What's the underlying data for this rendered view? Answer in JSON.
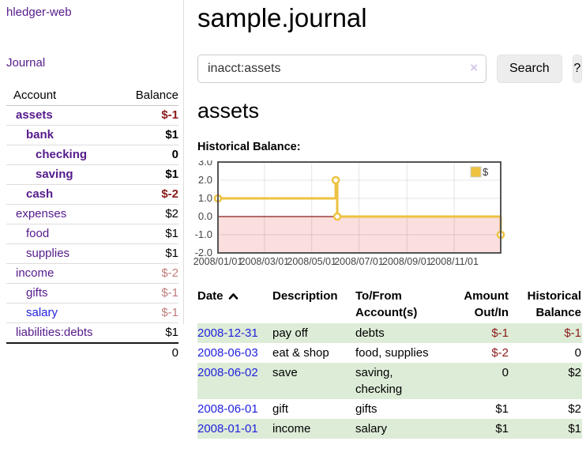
{
  "app": {
    "title": "hledger-web",
    "nav": [
      {
        "label": "Journal"
      }
    ]
  },
  "sidebar": {
    "account_header": "Account",
    "balance_header": "Balance",
    "accounts": [
      {
        "label": "assets",
        "level": 1,
        "emphasis": true,
        "label_style": "purple",
        "balance": "$-1",
        "balance_style": "neg"
      },
      {
        "label": "bank",
        "level": 2,
        "emphasis": true,
        "label_style": "purple",
        "balance": "$1",
        "balance_style": "plain"
      },
      {
        "label": "checking",
        "level": 3,
        "emphasis": true,
        "label_style": "purple",
        "balance": "0",
        "balance_style": "plain"
      },
      {
        "label": "saving",
        "level": 3,
        "emphasis": true,
        "label_style": "purple",
        "balance": "$1",
        "balance_style": "plain"
      },
      {
        "label": "cash",
        "level": 2,
        "emphasis": true,
        "label_style": "purple",
        "balance": "$-2",
        "balance_style": "neg"
      },
      {
        "label": "expenses",
        "level": 1,
        "emphasis": false,
        "label_style": "purple",
        "balance": "$2",
        "balance_style": "plain"
      },
      {
        "label": "food",
        "level": 2,
        "emphasis": false,
        "label_style": "purple",
        "balance": "$1",
        "balance_style": "plain"
      },
      {
        "label": "supplies",
        "level": 2,
        "emphasis": false,
        "label_style": "purple",
        "balance": "$1",
        "balance_style": "plain"
      },
      {
        "label": "income",
        "level": 1,
        "emphasis": false,
        "label_style": "purple",
        "balance": "$-2",
        "balance_style": "neg-soft"
      },
      {
        "label": "gifts",
        "level": 2,
        "emphasis": false,
        "label_style": "purple",
        "balance": "$-1",
        "balance_style": "neg-soft"
      },
      {
        "label": "salary",
        "level": 2,
        "emphasis": false,
        "label_style": "blue",
        "balance": "$-1",
        "balance_style": "neg-soft"
      },
      {
        "label": "liabilities:debts",
        "level": 1,
        "emphasis": false,
        "label_style": "purple",
        "balance": "$1",
        "balance_style": "plain"
      }
    ],
    "total": "0"
  },
  "main": {
    "title": "sample.journal",
    "search": {
      "value": "inacct:assets",
      "clear_icon": "×",
      "search_button": "Search",
      "help_button": "?"
    },
    "account_title": "assets",
    "chart_heading": "Historical Balance:"
  },
  "chart_data": {
    "type": "line",
    "step": true,
    "title": "Historical Balance",
    "xlabel": "",
    "ylabel": "",
    "xlim_days": [
      0,
      365
    ],
    "ylim": [
      -2,
      3
    ],
    "grid": true,
    "y_ticks": [
      3.0,
      2.0,
      1.0,
      0.0,
      -1.0,
      -2.0
    ],
    "x_ticks": [
      {
        "label": "2008/01/01",
        "day": 0
      },
      {
        "label": "2008/03/01",
        "day": 60
      },
      {
        "label": "2008/05/01",
        "day": 121
      },
      {
        "label": "2008/07/01",
        "day": 182
      },
      {
        "label": "2008/09/01",
        "day": 244
      },
      {
        "label": "2008/11/01",
        "day": 305
      }
    ],
    "series": [
      {
        "name": "$",
        "color": "#EDC240",
        "points": [
          {
            "date": "2008-01-01",
            "day": 0,
            "value": 1
          },
          {
            "date": "2008-06-01",
            "day": 152,
            "value": 2
          },
          {
            "date": "2008-06-03",
            "day": 154,
            "value": 0
          },
          {
            "date": "2008-12-31",
            "day": 365,
            "value": -1
          }
        ]
      }
    ],
    "legend": {
      "position": "top-right",
      "entries": [
        "$"
      ]
    },
    "negative_fill": "#fbdede",
    "zero_line_color": "#8b1a1a",
    "border_color": "#545454"
  },
  "register": {
    "columns": [
      {
        "label": "Date",
        "sorted": "asc"
      },
      {
        "label": "Description"
      },
      {
        "label": "To/From Account(s)"
      },
      {
        "label": "Amount Out/In"
      },
      {
        "label": "Historical Balance"
      }
    ],
    "rows": [
      {
        "date": "2008-12-31",
        "description": "pay off",
        "accounts": "debts",
        "amount": "$-1",
        "amount_style": "neg",
        "balance": "$-1",
        "balance_style": "neg"
      },
      {
        "date": "2008-06-03",
        "description": "eat & shop",
        "accounts": "food, supplies",
        "amount": "$-2",
        "amount_style": "neg",
        "balance": "0",
        "balance_style": "plain"
      },
      {
        "date": "2008-06-02",
        "description": "save",
        "accounts": "saving, checking",
        "amount": "0",
        "amount_style": "plain",
        "balance": "$2",
        "balance_style": "plain"
      },
      {
        "date": "2008-06-01",
        "description": "gift",
        "accounts": "gifts",
        "amount": "$1",
        "amount_style": "plain",
        "balance": "$2",
        "balance_style": "plain"
      },
      {
        "date": "2008-01-01",
        "description": "income",
        "accounts": "salary",
        "amount": "$1",
        "amount_style": "plain",
        "balance": "$1",
        "balance_style": "plain"
      }
    ]
  },
  "colors": {
    "link_purple": "#551A8B",
    "link_blue": "#2222DD",
    "negative_strong": "#8b1a1a",
    "negative_soft": "#c07c7c",
    "row_green": "#ddecd7",
    "chart_line": "#EDC240",
    "chart_negative_fill": "#fbdede",
    "chart_zero_line": "#8b1a1a",
    "chart_border": "#545454"
  }
}
